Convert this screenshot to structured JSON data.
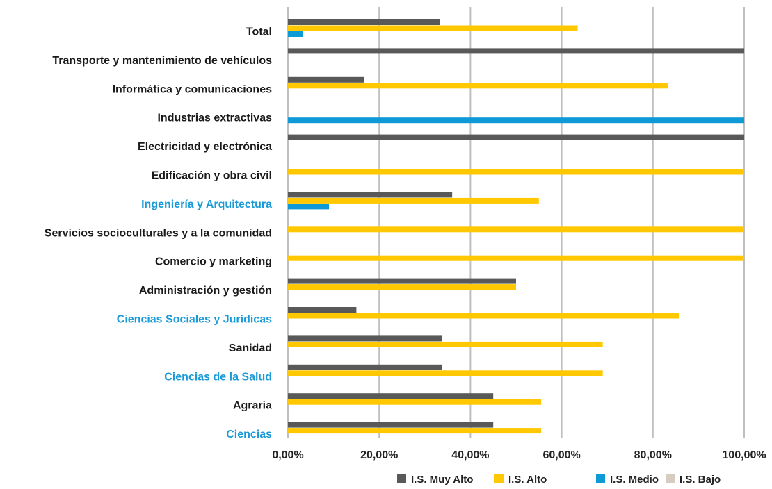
{
  "chart_data": {
    "type": "bar",
    "orientation": "horizontal",
    "categories": [
      "Total",
      "Transporte y mantenimiento de vehículos",
      "Informática y comunicaciones",
      "Industrias extractivas",
      "Electricidad y electrónica",
      "Edificación y obra civil",
      "Ingeniería y Arquitectura",
      "Servicios socioculturales y a la comunidad",
      "Comercio y marketing",
      "Administración y gestión",
      "Ciencias Sociales y Jurídicas",
      "Sanidad",
      "Ciencias de la Salud",
      "Agraria",
      "Ciencias"
    ],
    "highlighted_categories": [
      "Ingeniería y Arquitectura",
      "Ciencias Sociales y Jurídicas",
      "Ciencias de la Salud",
      "Ciencias"
    ],
    "series": [
      {
        "name": "I.S. Muy Alto",
        "color": "#595959",
        "values": [
          33.33,
          100,
          16.67,
          0,
          100,
          0,
          36.0,
          0,
          0,
          50,
          15.0,
          33.8,
          33.8,
          45.0,
          45.0
        ]
      },
      {
        "name": "I.S. Alto",
        "color": "#ffc800",
        "values": [
          63.5,
          0,
          83.33,
          0,
          0,
          100,
          55.0,
          100,
          100,
          50,
          85.7,
          69.0,
          69.0,
          55.5,
          55.5
        ]
      },
      {
        "name": "I.S. Medio",
        "color": "#0e9ad7",
        "values": [
          3.3,
          0,
          0,
          100,
          0,
          0,
          9.0,
          0,
          0,
          0,
          0,
          0,
          0,
          0,
          0
        ]
      },
      {
        "name": "I.S. Bajo",
        "color": "#d6ccbf",
        "values": [
          0,
          0,
          0,
          0,
          0,
          0,
          0,
          0,
          0,
          0,
          0,
          0,
          0,
          0,
          0
        ]
      }
    ],
    "x_ticks": [
      "0,00%",
      "20,00%",
      "40,00%",
      "60,00%",
      "80,00%",
      "100,00%"
    ],
    "xlim": [
      0,
      100
    ],
    "grid": "vertical",
    "legend_position": "bottom",
    "label_color": "#1a1a1a",
    "highlight_color": "#1a9bd7",
    "grid_color": "#bfbfbf"
  }
}
